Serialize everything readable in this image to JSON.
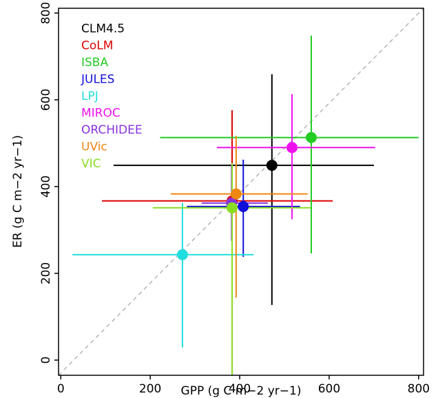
{
  "chart_data": {
    "type": "scatter",
    "xlabel": "GPP (g C m−2 yr−1)",
    "ylabel": "ER (g C m−2 yr−1)",
    "xlim": [
      -5,
      811
    ],
    "ylim": [
      -35,
      811
    ],
    "xticks": [
      0,
      200,
      400,
      600,
      800
    ],
    "yticks": [
      0,
      200,
      400,
      600,
      800
    ],
    "legend": "top-left",
    "series": [
      {
        "name": "CLM4.5",
        "color": "#000000",
        "x": 472,
        "y": 449,
        "x_range": [
          118,
          700
        ],
        "y_range": [
          127,
          659
        ]
      },
      {
        "name": "CoLM",
        "color": "#dd0000",
        "x": 383,
        "y": 367,
        "x_range": [
          92,
          608
        ],
        "y_range": [
          227,
          576
        ]
      },
      {
        "name": "ISBA",
        "color": "#22cc22",
        "x": 560,
        "y": 513,
        "x_range": [
          222,
          800
        ],
        "y_range": [
          246,
          748
        ]
      },
      {
        "name": "JULES",
        "color": "#1010dd",
        "x": 408,
        "y": 354,
        "x_range": [
          282,
          535
        ],
        "y_range": [
          238,
          462
        ]
      },
      {
        "name": "LPJ",
        "color": "#22dddd",
        "x": 272,
        "y": 243,
        "x_range": [
          26,
          431
        ],
        "y_range": [
          29,
          362
        ]
      },
      {
        "name": "MIROC",
        "color": "#ee11ee",
        "x": 517,
        "y": 490,
        "x_range": [
          349,
          703
        ],
        "y_range": [
          325,
          613
        ]
      },
      {
        "name": "ORCHIDEE",
        "color": "#8833dd",
        "x": 382,
        "y": 362,
        "x_range": [
          315,
          463
        ],
        "y_range": [
          275,
          449
        ]
      },
      {
        "name": "UVic",
        "color": "#ee8811",
        "x": 392,
        "y": 383,
        "x_range": [
          246,
          552
        ],
        "y_range": [
          144,
          517
        ]
      },
      {
        "name": "VIC",
        "color": "#88dd22",
        "x": 383,
        "y": 351,
        "x_range": [
          206,
          558
        ],
        "y_range": [
          -35,
          454
        ]
      }
    ]
  }
}
